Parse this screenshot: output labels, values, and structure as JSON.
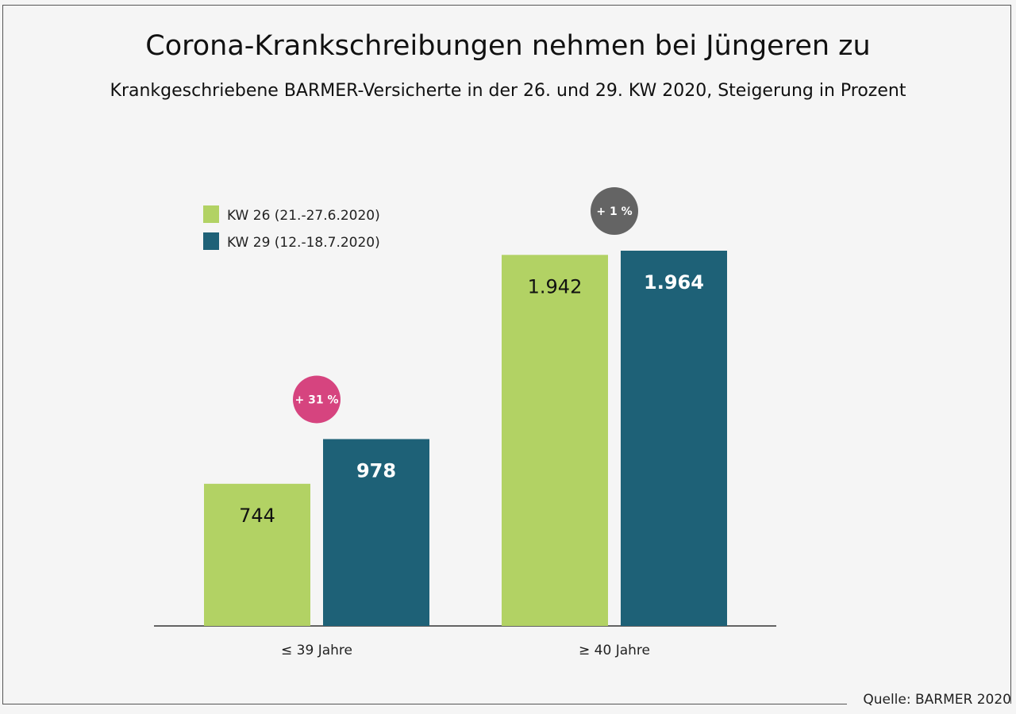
{
  "header": {
    "title": "Corona-Krankschreibungen nehmen bei Jüngeren zu",
    "subtitle": "Krankgeschriebene BARMER-Versicherte in der 26. und 29. KW 2020, Steigerung in Prozent"
  },
  "footer": {
    "source": "Quelle: BARMER 2020"
  },
  "colors": {
    "kw26": "#b2d264",
    "kw29": "#1e6177",
    "badge_young": "#d6447f",
    "badge_old": "#646464",
    "background": "#f5f5f5"
  },
  "chart_data": {
    "type": "bar",
    "title": "Corona-Krankschreibungen nehmen bei Jüngeren zu",
    "subtitle": "Krankgeschriebene BARMER-Versicherte in der 26. und 29. KW 2020, Steigerung in Prozent",
    "categories": [
      "≤ 39 Jahre",
      "≥ 40 Jahre"
    ],
    "series": [
      {
        "name": "KW 26 (21.-27.6.2020)",
        "values": [
          744,
          1942
        ],
        "labels": [
          "744",
          "1.942"
        ]
      },
      {
        "name": "KW 29 (12.-18.7.2020)",
        "values": [
          978,
          1964
        ],
        "labels": [
          "978",
          "1.964"
        ]
      }
    ],
    "badges": [
      "+ 31 %",
      "+ 1 %"
    ],
    "ylim": [
      0,
      2000
    ],
    "grid": false,
    "legend": "top-left",
    "xlabel": "",
    "ylabel": ""
  }
}
